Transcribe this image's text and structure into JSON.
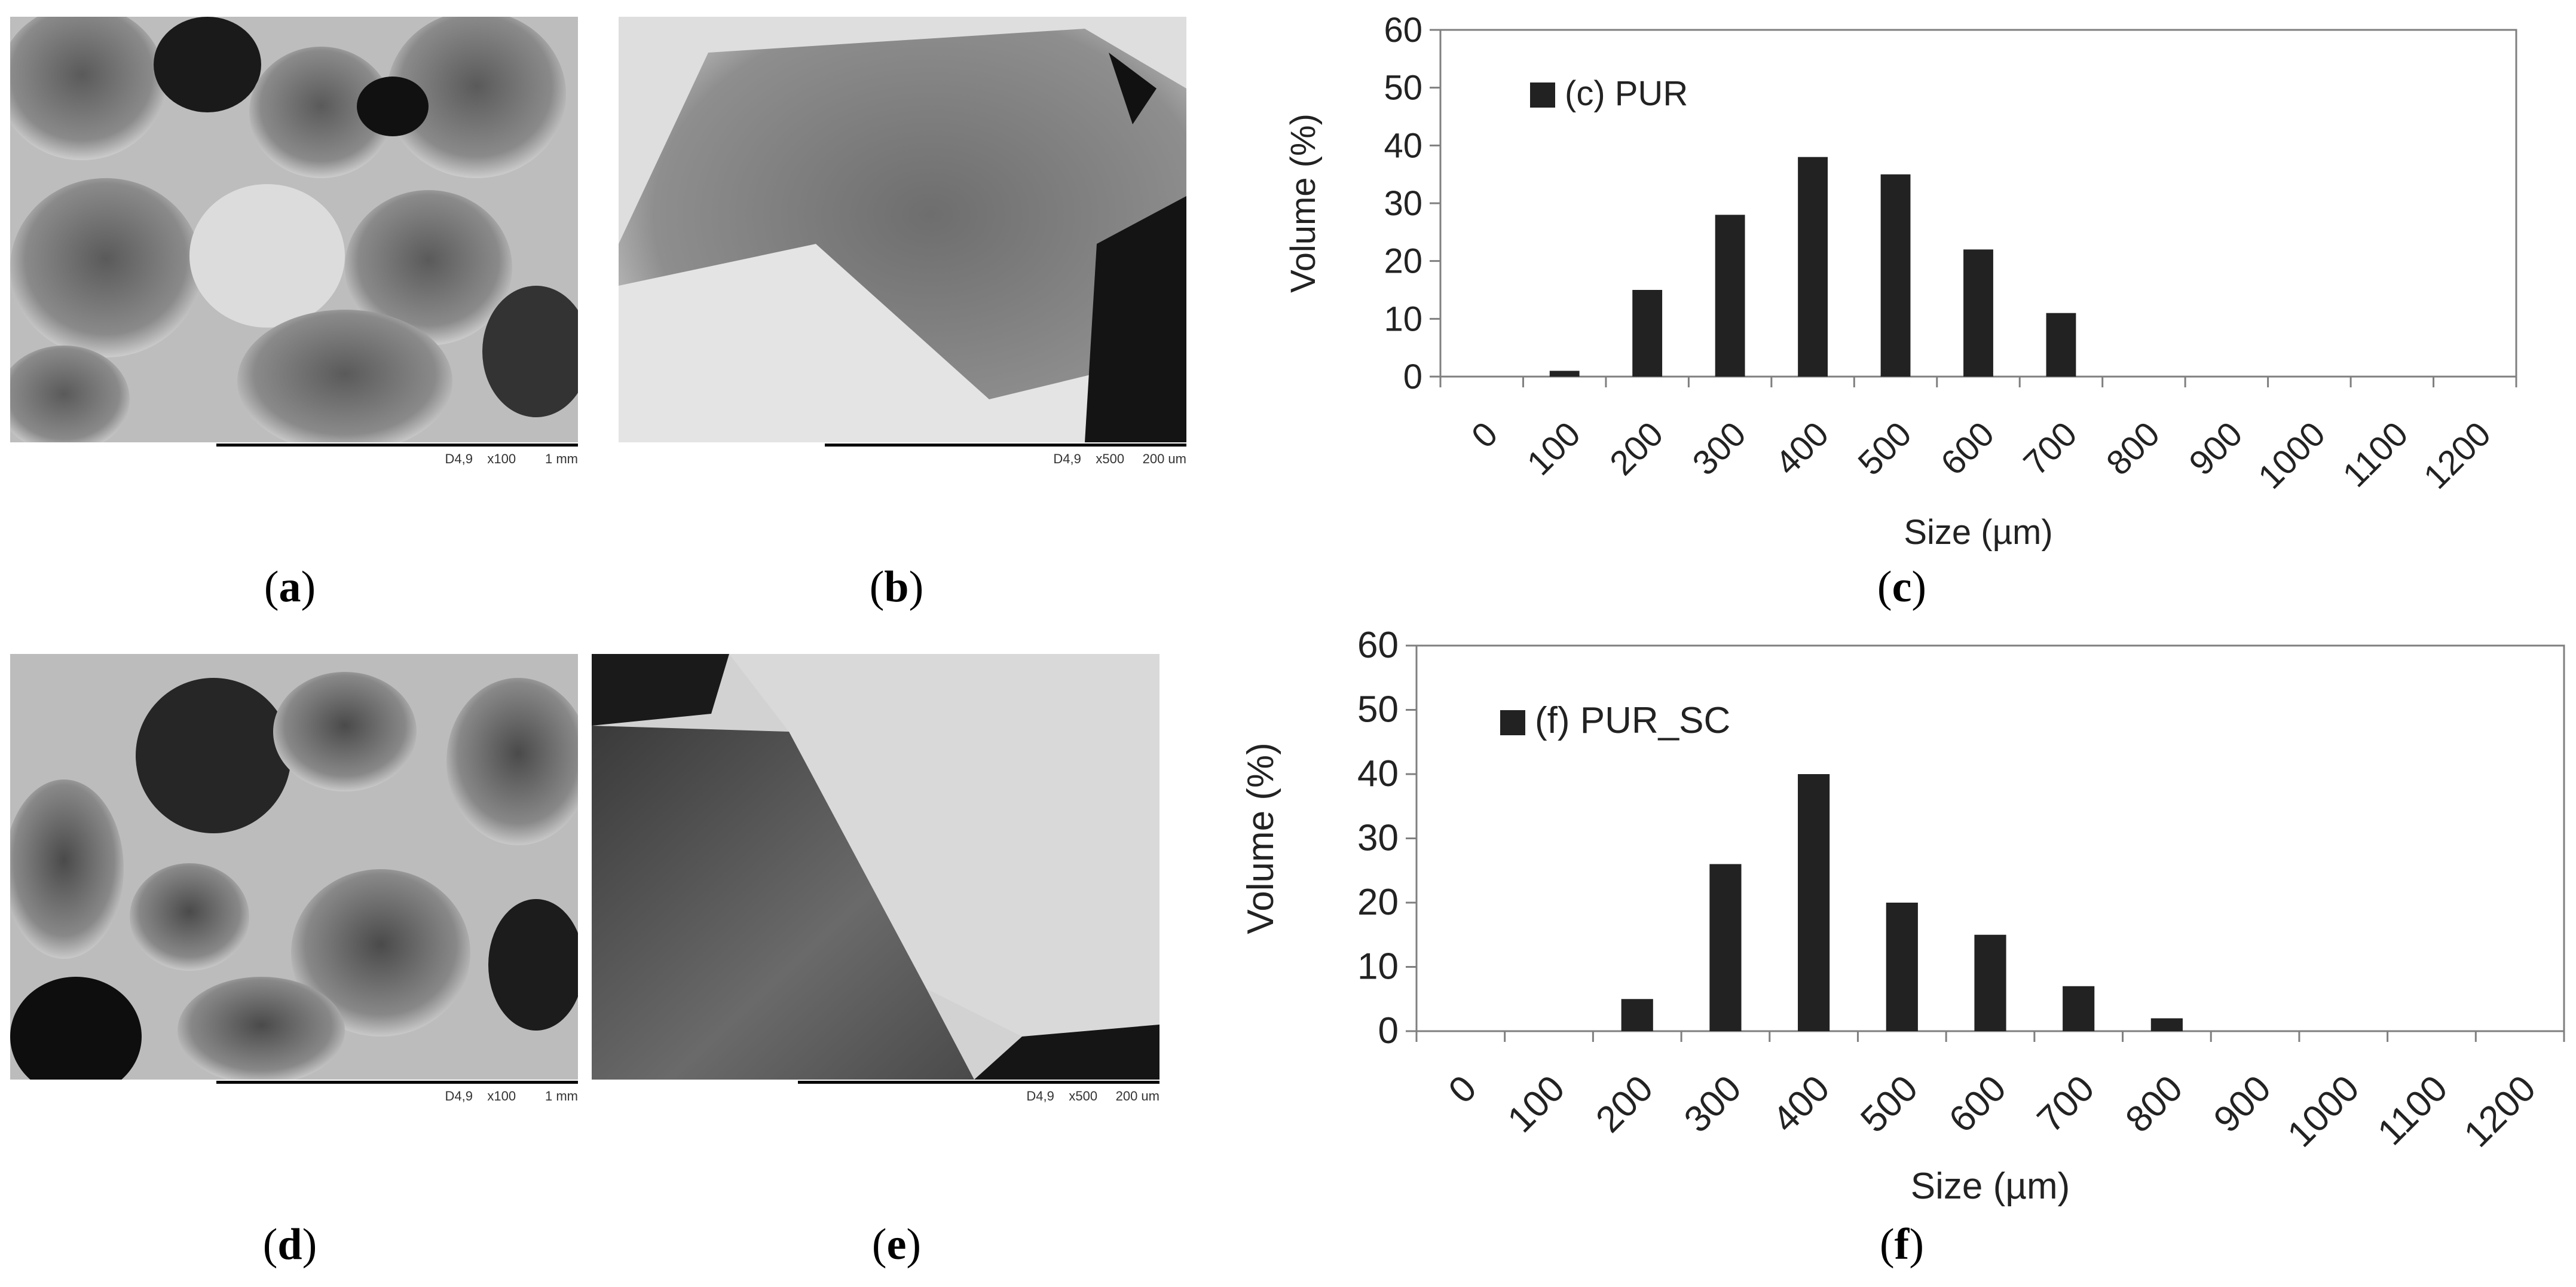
{
  "panels": {
    "a": {
      "caption": "a",
      "sem_label": "D4,9    x100        1 mm"
    },
    "b": {
      "caption": "b",
      "sem_label": "D4,9    x500     200 um"
    },
    "c": {
      "caption": "c"
    },
    "d": {
      "caption": "d",
      "sem_label": "D4,9    x100        1 mm"
    },
    "e": {
      "caption": "e",
      "sem_label": "D4,9    x500     200 um"
    },
    "f": {
      "caption": "f"
    }
  },
  "colors": {
    "bar": "#222222",
    "axis": "#7f7f7f"
  },
  "chart_data": [
    {
      "type": "bar",
      "categories": [
        "0",
        "100",
        "200",
        "300",
        "400",
        "500",
        "600",
        "700",
        "800",
        "900",
        "1000",
        "1100",
        "1200"
      ],
      "series": [
        {
          "name": "(c) PUR",
          "values": [
            0,
            1,
            15,
            28,
            38,
            35,
            22,
            11,
            0,
            0,
            0,
            0,
            0
          ]
        }
      ],
      "xlabel": "Size (µm)",
      "ylabel": "Volume (%)",
      "ylim": [
        0,
        60
      ],
      "yticks": [
        0,
        10,
        20,
        30,
        40,
        50,
        60
      ],
      "legend": "top-left",
      "grid": false
    },
    {
      "type": "bar",
      "categories": [
        "0",
        "100",
        "200",
        "300",
        "400",
        "500",
        "600",
        "700",
        "800",
        "900",
        "1000",
        "1100",
        "1200"
      ],
      "series": [
        {
          "name": "(f) PUR_SC",
          "values": [
            0,
            0,
            5,
            26,
            40,
            20,
            15,
            7,
            2,
            0,
            0,
            0,
            0
          ]
        }
      ],
      "xlabel": "Size (µm)",
      "ylabel": "Volume (%)",
      "ylim": [
        0,
        60
      ],
      "yticks": [
        0,
        10,
        20,
        30,
        40,
        50,
        60
      ],
      "legend": "top-left",
      "grid": false
    }
  ]
}
